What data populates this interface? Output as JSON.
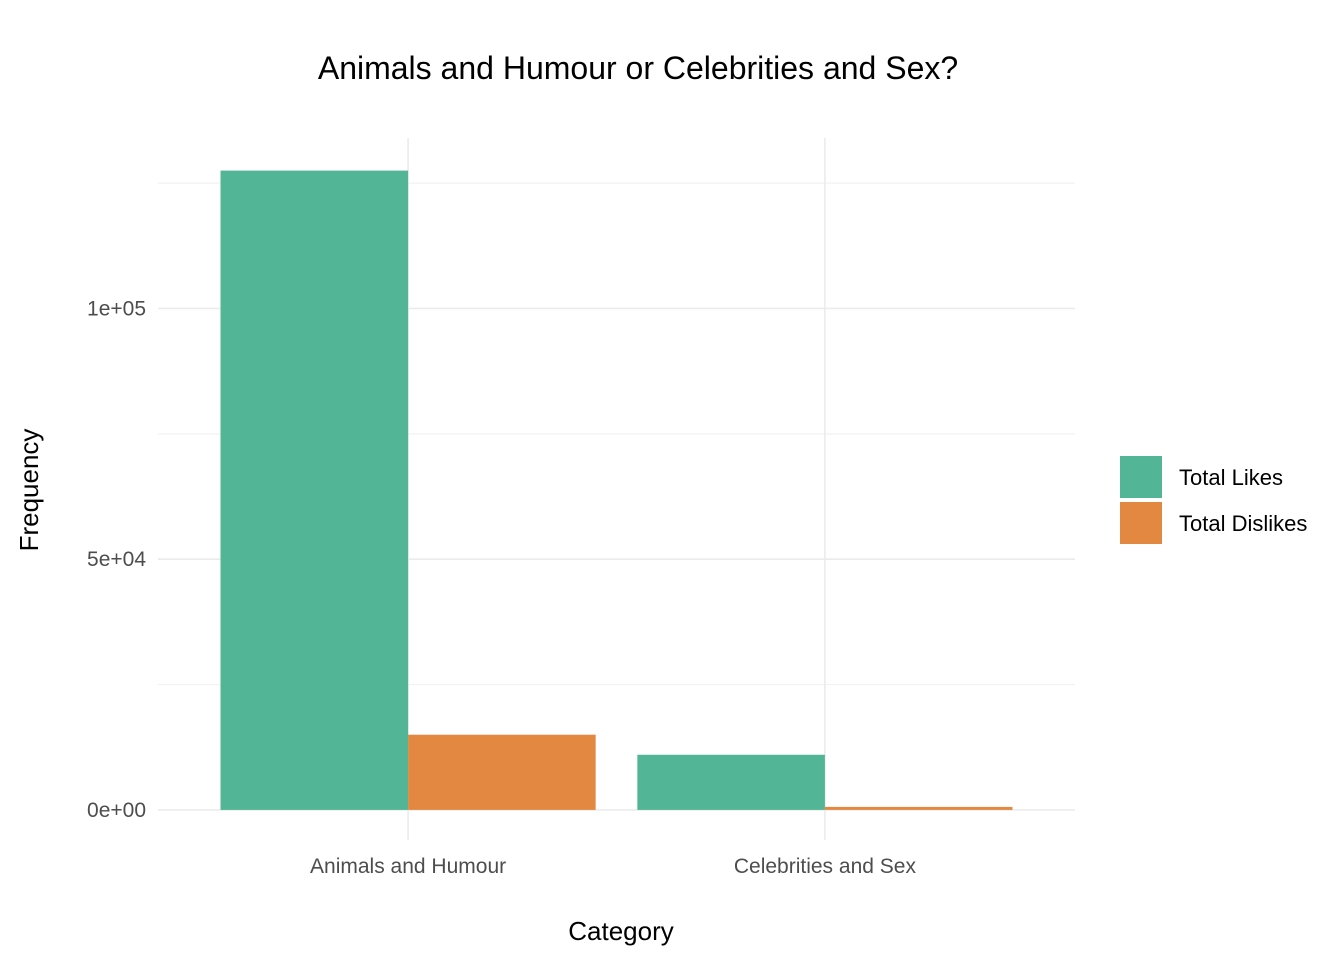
{
  "chart_data": {
    "type": "bar",
    "title": "Animals and Humour or Celebrities and Sex?",
    "xlabel": "Category",
    "ylabel": "Frequency",
    "categories": [
      "Animals and Humour",
      "Celebrities and Sex"
    ],
    "series": [
      {
        "name": "Total Likes",
        "values": [
          127500,
          11000
        ],
        "color": "#52b595"
      },
      {
        "name": "Total Dislikes",
        "values": [
          15000,
          600
        ],
        "color": "#e38841"
      }
    ],
    "ylim": [
      -6000,
      134000
    ],
    "yticks": [
      0,
      50000,
      100000
    ],
    "ytick_labels": [
      "0e+00",
      "5e+04",
      "1e+05"
    ],
    "grid": true,
    "legend_position": "right"
  }
}
